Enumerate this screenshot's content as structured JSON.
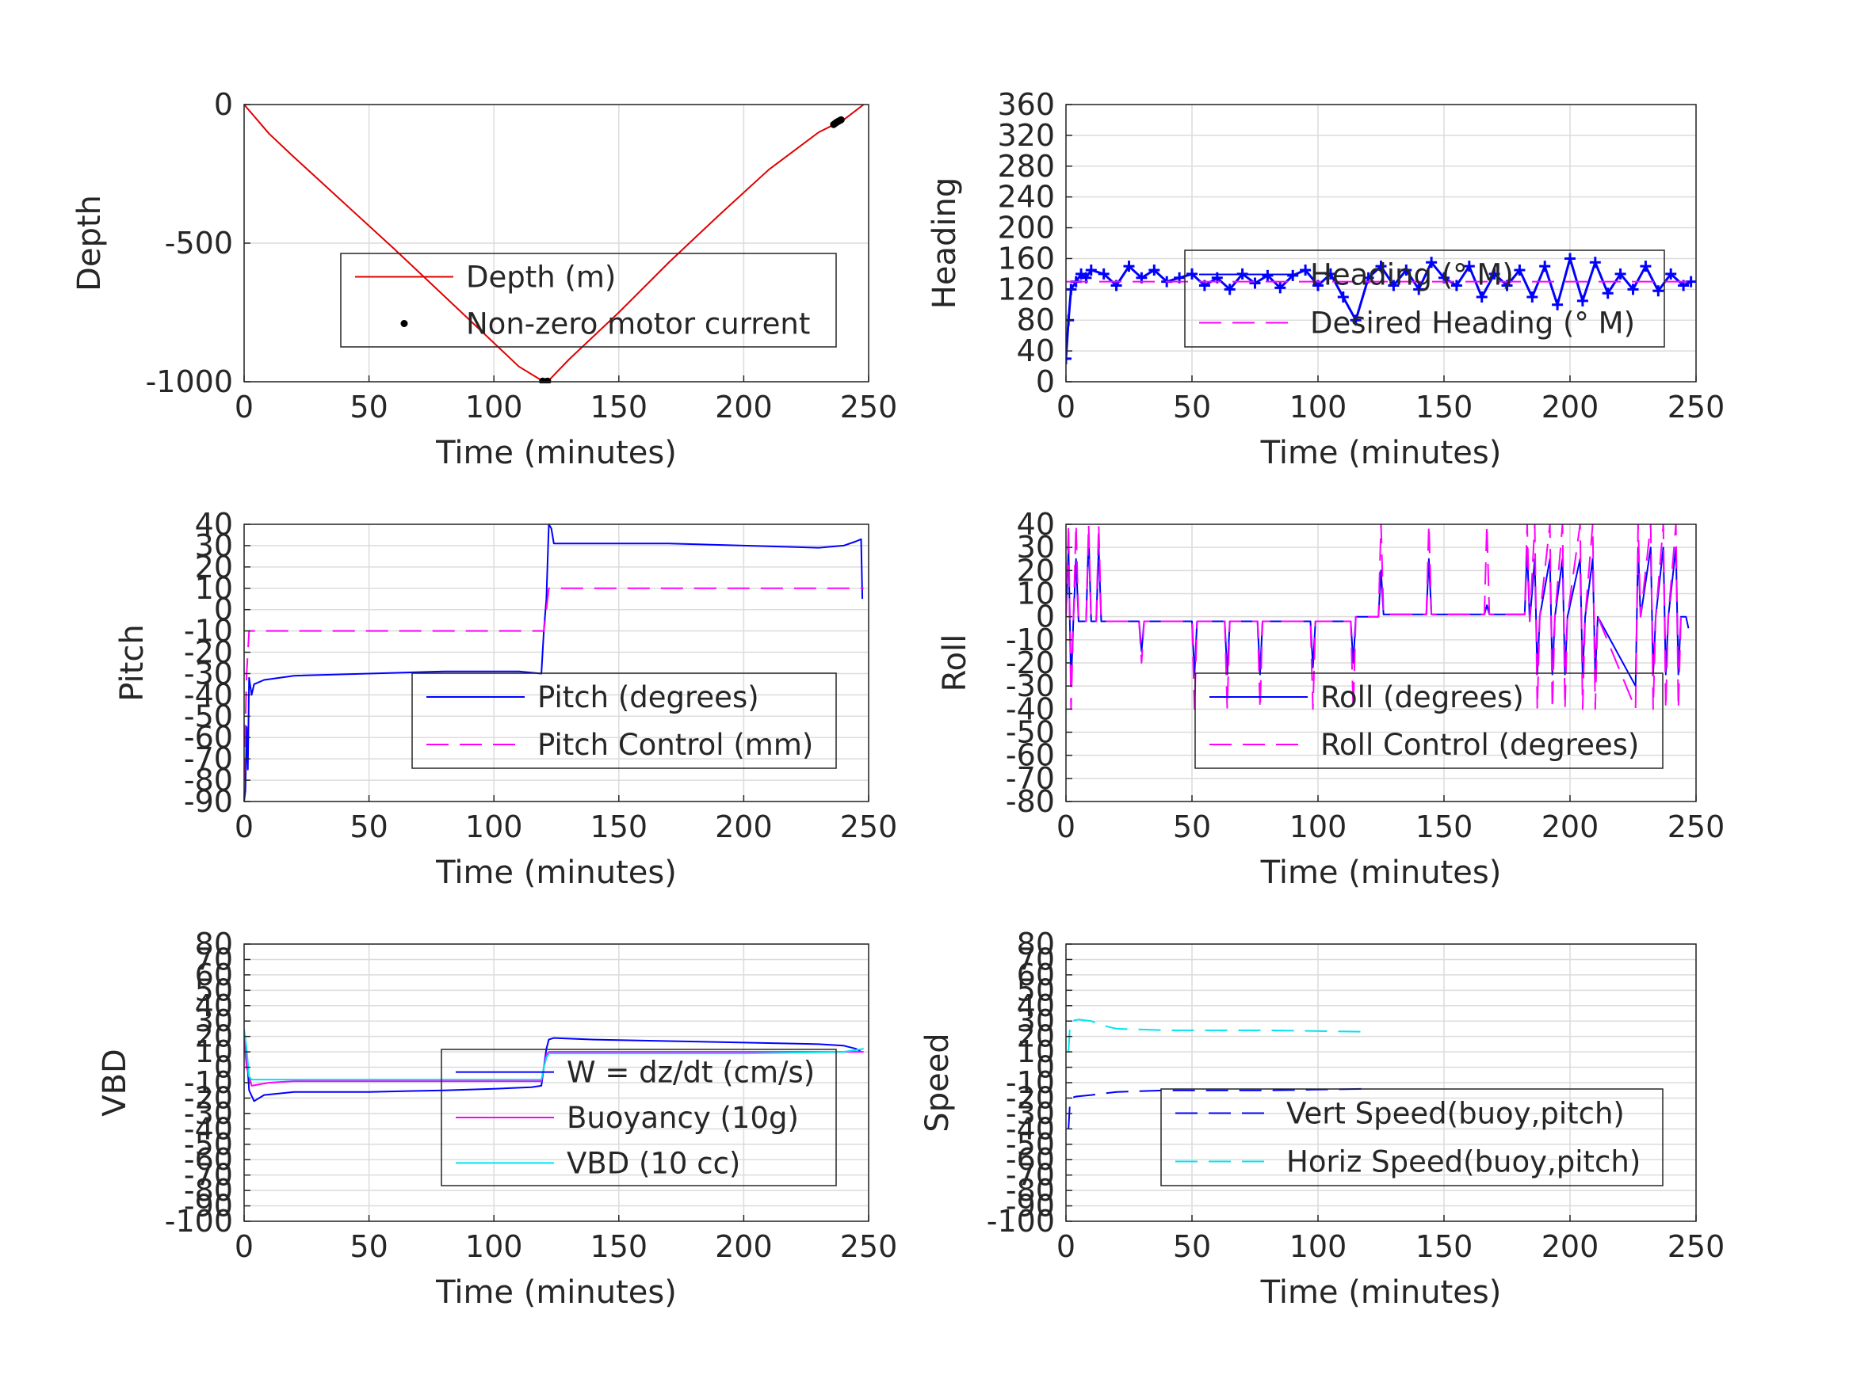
{
  "colors": {
    "red": "#e00000",
    "blue": "#0000ff",
    "magenta": "#ff00ff",
    "cyan": "#00e5ee",
    "black": "#000000",
    "grid": "#dcdcdc",
    "axis": "#262626"
  },
  "chart_data": [
    {
      "id": "depth",
      "type": "line",
      "xlabel": "Time (minutes)",
      "ylabel": "Depth",
      "xlim": [
        0,
        250
      ],
      "ylim": [
        -1000,
        0
      ],
      "xticks": [
        0,
        50,
        100,
        150,
        200,
        250
      ],
      "yticks": [
        0,
        -500,
        -1000
      ],
      "grid": true,
      "legend": "inside-right",
      "series": [
        {
          "name": "Depth (m)",
          "color": "red",
          "style": "solid",
          "kind": "line",
          "x": [
            0,
            10,
            20,
            40,
            60,
            80,
            100,
            110,
            120,
            122,
            130,
            150,
            170,
            190,
            210,
            230,
            240,
            248
          ],
          "y": [
            0,
            -105,
            -190,
            -355,
            -520,
            -690,
            -860,
            -945,
            -1000,
            -995,
            -920,
            -750,
            -570,
            -400,
            -235,
            -100,
            -55,
            0
          ]
        },
        {
          "name": "Non-zero motor current",
          "color": "black",
          "kind": "dots",
          "x": [
            119.5,
            120,
            120.5,
            121,
            121.5,
            236,
            236.6,
            237.2,
            237.8,
            238.4,
            239
          ],
          "y": [
            -998,
            -1000,
            -1000,
            -999,
            -998,
            -72,
            -68,
            -64,
            -61,
            -58,
            -55
          ]
        }
      ]
    },
    {
      "id": "heading",
      "type": "line",
      "xlabel": "Time (minutes)",
      "ylabel": "Heading",
      "xlim": [
        0,
        250
      ],
      "ylim": [
        0,
        360
      ],
      "xticks": [
        0,
        50,
        100,
        150,
        200,
        250
      ],
      "yticks": [
        0,
        40,
        80,
        120,
        160,
        200,
        240,
        280,
        320,
        360
      ],
      "grid": true,
      "legend": "inside-right",
      "series": [
        {
          "name": "Heading (° M)",
          "color": "blue",
          "style": "solid-plus",
          "kind": "line",
          "x": [
            0,
            1,
            2,
            4,
            6,
            8,
            10,
            15,
            20,
            25,
            30,
            35,
            40,
            45,
            50,
            55,
            60,
            65,
            70,
            75,
            80,
            85,
            90,
            95,
            100,
            105,
            110,
            115,
            120,
            125,
            130,
            135,
            140,
            145,
            150,
            155,
            160,
            165,
            170,
            175,
            180,
            185,
            190,
            195,
            200,
            205,
            210,
            215,
            220,
            225,
            230,
            235,
            240,
            245,
            248
          ],
          "y": [
            30,
            80,
            120,
            130,
            140,
            135,
            145,
            140,
            125,
            150,
            135,
            145,
            130,
            135,
            140,
            125,
            135,
            120,
            140,
            128,
            138,
            122,
            138,
            145,
            125,
            140,
            110,
            80,
            135,
            150,
            125,
            145,
            120,
            155,
            135,
            125,
            150,
            110,
            140,
            125,
            145,
            110,
            150,
            100,
            160,
            105,
            155,
            115,
            140,
            120,
            150,
            118,
            140,
            125,
            130
          ]
        },
        {
          "name": "Desired Heading (° M)",
          "color": "magenta",
          "style": "dashed",
          "kind": "line",
          "x": [
            0,
            248
          ],
          "y": [
            130,
            130
          ]
        }
      ]
    },
    {
      "id": "pitch",
      "type": "line",
      "xlabel": "Time (minutes)",
      "ylabel": "Pitch",
      "xlim": [
        0,
        250
      ],
      "ylim": [
        -90,
        40
      ],
      "xticks": [
        0,
        50,
        100,
        150,
        200,
        250
      ],
      "yticks": [
        40,
        30,
        20,
        10,
        0,
        -10,
        -20,
        -30,
        -40,
        -50,
        -60,
        -70,
        -80,
        -90
      ],
      "grid": true,
      "legend": "inside-right",
      "series": [
        {
          "name": "Pitch (degrees)",
          "color": "blue",
          "style": "solid",
          "kind": "line",
          "x": [
            0,
            0.5,
            1,
            1.5,
            2,
            3,
            4,
            8,
            20,
            50,
            80,
            100,
            110,
            119,
            120,
            121,
            122,
            123,
            124,
            140,
            170,
            200,
            230,
            240,
            245,
            247,
            247.5
          ],
          "y": [
            -90,
            -85,
            -55,
            -75,
            -32,
            -40,
            -35,
            -33,
            -31,
            -30,
            -29,
            -29,
            -29,
            -30,
            -10,
            5,
            40,
            38,
            31,
            31,
            31,
            30,
            29,
            30,
            32,
            33,
            5
          ]
        },
        {
          "name": "Pitch Control (mm)",
          "color": "magenta",
          "style": "dashed",
          "kind": "line",
          "x": [
            0,
            1,
            2,
            120,
            121,
            122,
            248
          ],
          "y": [
            -80,
            -30,
            -10,
            -10,
            0,
            10,
            10
          ]
        }
      ]
    },
    {
      "id": "roll",
      "type": "line",
      "xlabel": "Time (minutes)",
      "ylabel": "Roll",
      "xlim": [
        0,
        250
      ],
      "ylim": [
        -80,
        40
      ],
      "xticks": [
        0,
        50,
        100,
        150,
        200,
        250
      ],
      "yticks": [
        40,
        30,
        20,
        10,
        0,
        -10,
        -20,
        -30,
        -40,
        -50,
        -60,
        -70,
        -80
      ],
      "grid": true,
      "legend": "inside-right",
      "series": [
        {
          "name": "Roll (degrees)",
          "color": "blue",
          "style": "solid",
          "kind": "line",
          "x": [
            0,
            1,
            2,
            3,
            4,
            5,
            6,
            8,
            9,
            10,
            12,
            13,
            14,
            16,
            29,
            30,
            31,
            50,
            51,
            52,
            63,
            64,
            65,
            76,
            77,
            78,
            97,
            98,
            99,
            113,
            114,
            115,
            124,
            125,
            126,
            143,
            144,
            145,
            166,
            167,
            168,
            182,
            183,
            184,
            186,
            187,
            188,
            192,
            193,
            194,
            197,
            198,
            199,
            204,
            205,
            206,
            209,
            210,
            211,
            226,
            227,
            228,
            232,
            233,
            234,
            237,
            238,
            239,
            242,
            243,
            244,
            246,
            247
          ],
          "y": [
            0,
            30,
            -30,
            0,
            25,
            -2,
            -2,
            -2,
            35,
            -2,
            -2,
            30,
            -2,
            -2,
            -2,
            -15,
            -2,
            -2,
            -25,
            -2,
            -2,
            -25,
            -2,
            -2,
            -25,
            -2,
            -2,
            -22,
            -2,
            -2,
            -20,
            0,
            0,
            20,
            1,
            1,
            25,
            1,
            1,
            5,
            1,
            1,
            30,
            -2,
            25,
            -25,
            0,
            25,
            -25,
            0,
            25,
            -25,
            0,
            25,
            -25,
            0,
            25,
            -25,
            0,
            -30,
            30,
            0,
            30,
            -25,
            0,
            30,
            -25,
            0,
            30,
            -25,
            0,
            0,
            -5
          ]
        },
        {
          "name": "Roll Control (degrees)",
          "color": "magenta",
          "style": "dashed",
          "kind": "line",
          "x": [
            0,
            1,
            2,
            3,
            4,
            5,
            8,
            9,
            10,
            12,
            13,
            14,
            16,
            29,
            30,
            31,
            50,
            51,
            52,
            63,
            64,
            65,
            76,
            77,
            78,
            97,
            98,
            99,
            113,
            114,
            115,
            124,
            125,
            126,
            143,
            144,
            145,
            166,
            167,
            168,
            182,
            183,
            184,
            186,
            187,
            188,
            192,
            193,
            194,
            197,
            198,
            199,
            204,
            205,
            206,
            209,
            210,
            211,
            226,
            227,
            228,
            232,
            233,
            234,
            237,
            238,
            239,
            242,
            243,
            244,
            246
          ],
          "y": [
            0,
            40,
            -40,
            0,
            40,
            -2,
            -2,
            40,
            -2,
            -2,
            40,
            -2,
            -2,
            -2,
            -20,
            -2,
            -2,
            -40,
            -2,
            -2,
            -40,
            -2,
            -2,
            -40,
            -2,
            -2,
            -40,
            -2,
            -2,
            -40,
            0,
            0,
            40,
            1,
            1,
            40,
            1,
            1,
            40,
            1,
            1,
            40,
            -2,
            40,
            -40,
            0,
            40,
            -40,
            0,
            40,
            -40,
            0,
            40,
            -40,
            0,
            40,
            -40,
            0,
            -40,
            40,
            0,
            40,
            -40,
            0,
            40,
            -40,
            0,
            40,
            -40,
            0,
            0
          ]
        }
      ]
    },
    {
      "id": "vbd",
      "type": "line",
      "xlabel": "Time (minutes)",
      "ylabel": "VBD",
      "xlim": [
        0,
        250
      ],
      "ylim": [
        -100,
        80
      ],
      "xticks": [
        0,
        50,
        100,
        150,
        200,
        250
      ],
      "yticks": [
        80,
        70,
        60,
        50,
        40,
        30,
        20,
        10,
        0,
        -10,
        -20,
        -30,
        -40,
        -50,
        -60,
        -70,
        -80,
        -90,
        -100
      ],
      "grid": true,
      "legend": "inside-right",
      "series": [
        {
          "name": "W = dz/dt (cm/s)",
          "color": "blue",
          "style": "solid",
          "kind": "line",
          "x": [
            0,
            1,
            2,
            4,
            8,
            20,
            50,
            80,
            100,
            115,
            119,
            120,
            121,
            122,
            124,
            140,
            170,
            200,
            230,
            240,
            245,
            247
          ],
          "y": [
            20,
            10,
            -15,
            -22,
            -18,
            -16,
            -16,
            -15,
            -14,
            -13,
            -12,
            0,
            12,
            18,
            19,
            18,
            17,
            16,
            15,
            14,
            12,
            10
          ]
        },
        {
          "name": "Buoyancy (10g)",
          "color": "magenta",
          "style": "solid",
          "kind": "line",
          "x": [
            0,
            1,
            3,
            10,
            20,
            50,
            100,
            119,
            120,
            121,
            122,
            150,
            200,
            248
          ],
          "y": [
            18,
            0,
            -12,
            -10,
            -9,
            -9,
            -9,
            -9,
            0,
            8,
            10,
            10,
            10,
            10
          ]
        },
        {
          "name": "VBD (10 cc)",
          "color": "cyan",
          "style": "solid",
          "kind": "line",
          "x": [
            0,
            1,
            2,
            3,
            50,
            100,
            119,
            120,
            121,
            122,
            200,
            240,
            248
          ],
          "y": [
            25,
            12,
            -6,
            -8,
            -8,
            -8,
            -8,
            0,
            6,
            9,
            9,
            10,
            12
          ]
        }
      ]
    },
    {
      "id": "speed",
      "type": "line",
      "xlabel": "Time (minutes)",
      "ylabel": "Speed",
      "xlim": [
        0,
        250
      ],
      "ylim": [
        -100,
        80
      ],
      "xticks": [
        0,
        50,
        100,
        150,
        200,
        250
      ],
      "yticks": [
        80,
        70,
        60,
        50,
        40,
        30,
        20,
        10,
        0,
        -10,
        -20,
        -30,
        -40,
        -50,
        -60,
        -70,
        -80,
        -90,
        -100
      ],
      "grid": true,
      "legend": "inside-right",
      "series": [
        {
          "name": "Vert Speed(buoy,pitch)",
          "color": "blue",
          "style": "dashed",
          "kind": "line",
          "x": [
            1,
            1.5,
            2,
            4,
            10,
            20,
            40,
            80,
            120
          ],
          "y": [
            -40,
            -25,
            -20,
            -19,
            -18,
            -16,
            -15,
            -15,
            -14
          ]
        },
        {
          "name": "Horiz Speed(buoy,pitch)",
          "color": "cyan",
          "style": "dashed",
          "kind": "line",
          "x": [
            1,
            1.5,
            2,
            5,
            10,
            15,
            20,
            40,
            80,
            120
          ],
          "y": [
            10,
            25,
            30,
            31,
            30,
            27,
            25,
            24,
            24,
            23
          ]
        }
      ]
    }
  ]
}
